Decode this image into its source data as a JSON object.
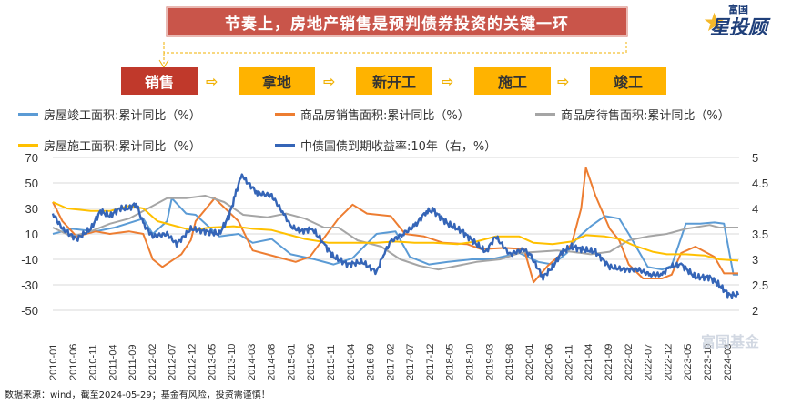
{
  "banner": {
    "title": "节奏上，房地产销售是预判债券投资的关键一环"
  },
  "logo": {
    "top": "富国",
    "main": "星投顾"
  },
  "flow": {
    "steps": [
      "销售",
      "拿地",
      "新开工",
      "施工",
      "竣工"
    ],
    "highlight_color": "#c0392b",
    "step_color": "#ffb300",
    "arrow": "⇨"
  },
  "footer": {
    "source": "数据来源：wind，截至2024-05-29；基金有风险，投资需谨慎！"
  },
  "watermark": "富国基金",
  "colors": {
    "completion": "#5b9bd5",
    "sales": "#ed7d31",
    "unsold": "#a5a5a5",
    "construction": "#ffc000",
    "yield": "#3565b7",
    "gridline": "#d9d9d9"
  },
  "chart_data": {
    "type": "line",
    "x_tick_labels": [
      "2010-01",
      "2010-06",
      "2010-11",
      "2011-04",
      "2011-09",
      "2012-02",
      "2012-07",
      "2012-12",
      "2013-05",
      "2013-10",
      "2014-03",
      "2014-08",
      "2015-01",
      "2015-06",
      "2015-11",
      "2016-04",
      "2016-09",
      "2017-02",
      "2017-07",
      "2017-12",
      "2018-05",
      "2018-10",
      "2019-03",
      "2019-08",
      "2020-01",
      "2020-06",
      "2020-11",
      "2021-04",
      "2021-09",
      "2022-02",
      "2022-07",
      "2022-12",
      "2023-05",
      "2023-10",
      "2024-03"
    ],
    "y_left": {
      "ticks": [
        70,
        50,
        30,
        10,
        -10,
        -30,
        -50
      ],
      "range": [
        -50,
        70
      ]
    },
    "y_right": {
      "ticks": [
        5,
        4.5,
        4,
        3.5,
        3,
        2.5,
        2
      ],
      "range": [
        2,
        5
      ]
    },
    "legend_position": "top",
    "series": [
      {
        "name": "房屋竣工面积:累计同比（%）",
        "axis": "left",
        "points": [
          [
            2010.0,
            10
          ],
          [
            2010.4,
            14
          ],
          [
            2010.9,
            12
          ],
          [
            2011.3,
            15
          ],
          [
            2011.9,
            22
          ],
          [
            2012.1,
            10
          ],
          [
            2012.4,
            20
          ],
          [
            2012.5,
            38
          ],
          [
            2012.8,
            26
          ],
          [
            2013.0,
            25
          ],
          [
            2013.5,
            8
          ],
          [
            2013.9,
            10
          ],
          [
            2014.2,
            3
          ],
          [
            2014.6,
            6
          ],
          [
            2015.0,
            -6
          ],
          [
            2015.5,
            -10
          ],
          [
            2015.9,
            -14
          ],
          [
            2016.3,
            -9
          ],
          [
            2016.8,
            10
          ],
          [
            2017.2,
            12
          ],
          [
            2017.5,
            -8
          ],
          [
            2017.9,
            -14
          ],
          [
            2018.3,
            -12
          ],
          [
            2018.8,
            -10
          ],
          [
            2019.2,
            -10
          ],
          [
            2019.8,
            -5
          ],
          [
            2020.2,
            -12
          ],
          [
            2020.5,
            -14
          ],
          [
            2020.8,
            -5
          ],
          [
            2021.0,
            6
          ],
          [
            2021.3,
            16
          ],
          [
            2021.6,
            24
          ],
          [
            2021.9,
            22
          ],
          [
            2022.1,
            10
          ],
          [
            2022.5,
            -16
          ],
          [
            2022.8,
            -18
          ],
          [
            2023.0,
            -15
          ],
          [
            2023.3,
            18
          ],
          [
            2023.6,
            18
          ],
          [
            2023.9,
            19
          ],
          [
            2024.1,
            18
          ],
          [
            2024.3,
            -22
          ],
          [
            2024.4,
            -22
          ]
        ]
      },
      {
        "name": "商品房销售面积:累计同比（%）",
        "axis": "left",
        "points": [
          [
            2010.0,
            35
          ],
          [
            2010.2,
            20
          ],
          [
            2010.5,
            8
          ],
          [
            2010.9,
            12
          ],
          [
            2011.2,
            10
          ],
          [
            2011.6,
            12
          ],
          [
            2011.9,
            10
          ],
          [
            2012.1,
            -10
          ],
          [
            2012.3,
            -16
          ],
          [
            2012.7,
            -6
          ],
          [
            2012.9,
            5
          ],
          [
            2013.0,
            20
          ],
          [
            2013.4,
            38
          ],
          [
            2013.9,
            20
          ],
          [
            2014.2,
            -3
          ],
          [
            2014.5,
            -6
          ],
          [
            2014.9,
            -10
          ],
          [
            2015.1,
            -12
          ],
          [
            2015.4,
            -8
          ],
          [
            2015.8,
            12
          ],
          [
            2016.0,
            22
          ],
          [
            2016.3,
            33
          ],
          [
            2016.6,
            26
          ],
          [
            2017.1,
            24
          ],
          [
            2017.4,
            10
          ],
          [
            2017.8,
            8
          ],
          [
            2018.2,
            3
          ],
          [
            2018.7,
            2
          ],
          [
            2019.0,
            -2
          ],
          [
            2019.5,
            -1
          ],
          [
            2019.9,
            -2
          ],
          [
            2020.1,
            -28
          ],
          [
            2020.4,
            -15
          ],
          [
            2020.8,
            -2
          ],
          [
            2020.9,
            2
          ],
          [
            2021.1,
            30
          ],
          [
            2021.2,
            62
          ],
          [
            2021.4,
            40
          ],
          [
            2021.7,
            14
          ],
          [
            2021.9,
            5
          ],
          [
            2022.1,
            -14
          ],
          [
            2022.4,
            -25
          ],
          [
            2022.8,
            -25
          ],
          [
            2023.0,
            -22
          ],
          [
            2023.2,
            -5
          ],
          [
            2023.5,
            0
          ],
          [
            2023.9,
            -8
          ],
          [
            2024.1,
            -21
          ],
          [
            2024.4,
            -21
          ]
        ]
      },
      {
        "name": "商品房待售面积:累计同比（%）",
        "axis": "left",
        "points": [
          [
            2010.0,
            15
          ],
          [
            2010.4,
            8
          ],
          [
            2010.8,
            12
          ],
          [
            2011.2,
            18
          ],
          [
            2011.6,
            22
          ],
          [
            2012.0,
            30
          ],
          [
            2012.4,
            38
          ],
          [
            2012.8,
            38
          ],
          [
            2013.2,
            40
          ],
          [
            2013.6,
            35
          ],
          [
            2014.0,
            25
          ],
          [
            2014.5,
            23
          ],
          [
            2014.9,
            26
          ],
          [
            2015.3,
            22
          ],
          [
            2015.7,
            15
          ],
          [
            2016.0,
            15
          ],
          [
            2016.4,
            5
          ],
          [
            2016.9,
            0
          ],
          [
            2017.3,
            -10
          ],
          [
            2017.7,
            -15
          ],
          [
            2018.1,
            -18
          ],
          [
            2018.5,
            -15
          ],
          [
            2018.9,
            -12
          ],
          [
            2019.4,
            -10
          ],
          [
            2019.8,
            -5
          ],
          [
            2020.2,
            -4
          ],
          [
            2020.6,
            -3
          ],
          [
            2020.9,
            -4
          ],
          [
            2021.3,
            -6
          ],
          [
            2021.7,
            -4
          ],
          [
            2022.1,
            5
          ],
          [
            2022.5,
            8
          ],
          [
            2022.9,
            10
          ],
          [
            2023.3,
            14
          ],
          [
            2023.8,
            17
          ],
          [
            2024.0,
            15
          ],
          [
            2024.4,
            15
          ]
        ]
      },
      {
        "name": "房屋施工面积:累计同比（%）",
        "axis": "left",
        "points": [
          [
            2010.0,
            35
          ],
          [
            2010.3,
            30
          ],
          [
            2010.8,
            28
          ],
          [
            2011.2,
            28
          ],
          [
            2011.6,
            32
          ],
          [
            2011.9,
            30
          ],
          [
            2012.2,
            20
          ],
          [
            2012.6,
            16
          ],
          [
            2012.9,
            13
          ],
          [
            2013.3,
            15
          ],
          [
            2013.8,
            16
          ],
          [
            2014.2,
            14
          ],
          [
            2014.6,
            13
          ],
          [
            2014.9,
            10
          ],
          [
            2015.3,
            6
          ],
          [
            2015.8,
            3
          ],
          [
            2016.2,
            3
          ],
          [
            2016.8,
            3
          ],
          [
            2017.2,
            4
          ],
          [
            2017.6,
            3
          ],
          [
            2018.0,
            3
          ],
          [
            2018.5,
            2
          ],
          [
            2018.9,
            4
          ],
          [
            2019.3,
            8
          ],
          [
            2019.8,
            8
          ],
          [
            2020.1,
            3
          ],
          [
            2020.5,
            2
          ],
          [
            2020.9,
            4
          ],
          [
            2021.2,
            9
          ],
          [
            2021.6,
            8
          ],
          [
            2021.9,
            6
          ],
          [
            2022.2,
            1
          ],
          [
            2022.6,
            -4
          ],
          [
            2022.9,
            -6
          ],
          [
            2023.3,
            -6
          ],
          [
            2023.7,
            -7
          ],
          [
            2024.0,
            -10
          ],
          [
            2024.4,
            -11
          ]
        ]
      },
      {
        "name": "中债国债到期收益率:10年（右，%）",
        "axis": "right",
        "points": [
          [
            2010.0,
            3.9
          ],
          [
            2010.2,
            3.6
          ],
          [
            2010.5,
            3.4
          ],
          [
            2010.8,
            3.6
          ],
          [
            2011.0,
            3.95
          ],
          [
            2011.2,
            3.85
          ],
          [
            2011.4,
            4.0
          ],
          [
            2011.6,
            4.0
          ],
          [
            2011.75,
            4.1
          ],
          [
            2011.9,
            3.7
          ],
          [
            2012.1,
            3.45
          ],
          [
            2012.4,
            3.5
          ],
          [
            2012.6,
            3.3
          ],
          [
            2012.9,
            3.6
          ],
          [
            2013.2,
            3.55
          ],
          [
            2013.5,
            3.5
          ],
          [
            2013.7,
            3.85
          ],
          [
            2013.85,
            4.3
          ],
          [
            2013.95,
            4.65
          ],
          [
            2014.05,
            4.55
          ],
          [
            2014.3,
            4.3
          ],
          [
            2014.6,
            4.25
          ],
          [
            2014.85,
            3.9
          ],
          [
            2015.0,
            3.65
          ],
          [
            2015.2,
            3.55
          ],
          [
            2015.45,
            3.6
          ],
          [
            2015.7,
            3.3
          ],
          [
            2015.9,
            3.05
          ],
          [
            2016.2,
            2.9
          ],
          [
            2016.5,
            2.95
          ],
          [
            2016.8,
            2.75
          ],
          [
            2016.95,
            3.1
          ],
          [
            2017.1,
            3.35
          ],
          [
            2017.35,
            3.5
          ],
          [
            2017.6,
            3.65
          ],
          [
            2017.85,
            3.95
          ],
          [
            2018.0,
            3.95
          ],
          [
            2018.3,
            3.7
          ],
          [
            2018.6,
            3.55
          ],
          [
            2018.9,
            3.3
          ],
          [
            2019.1,
            3.15
          ],
          [
            2019.3,
            3.45
          ],
          [
            2019.6,
            3.1
          ],
          [
            2019.9,
            3.2
          ],
          [
            2020.05,
            3.05
          ],
          [
            2020.3,
            2.65
          ],
          [
            2020.5,
            2.85
          ],
          [
            2020.7,
            3.15
          ],
          [
            2020.9,
            3.25
          ],
          [
            2021.1,
            3.2
          ],
          [
            2021.4,
            3.15
          ],
          [
            2021.7,
            2.85
          ],
          [
            2022.0,
            2.8
          ],
          [
            2022.3,
            2.8
          ],
          [
            2022.55,
            2.7
          ],
          [
            2022.8,
            2.7
          ],
          [
            2022.95,
            2.85
          ],
          [
            2023.2,
            2.9
          ],
          [
            2023.5,
            2.65
          ],
          [
            2023.8,
            2.65
          ],
          [
            2024.0,
            2.5
          ],
          [
            2024.2,
            2.3
          ],
          [
            2024.4,
            2.3
          ]
        ]
      }
    ]
  }
}
